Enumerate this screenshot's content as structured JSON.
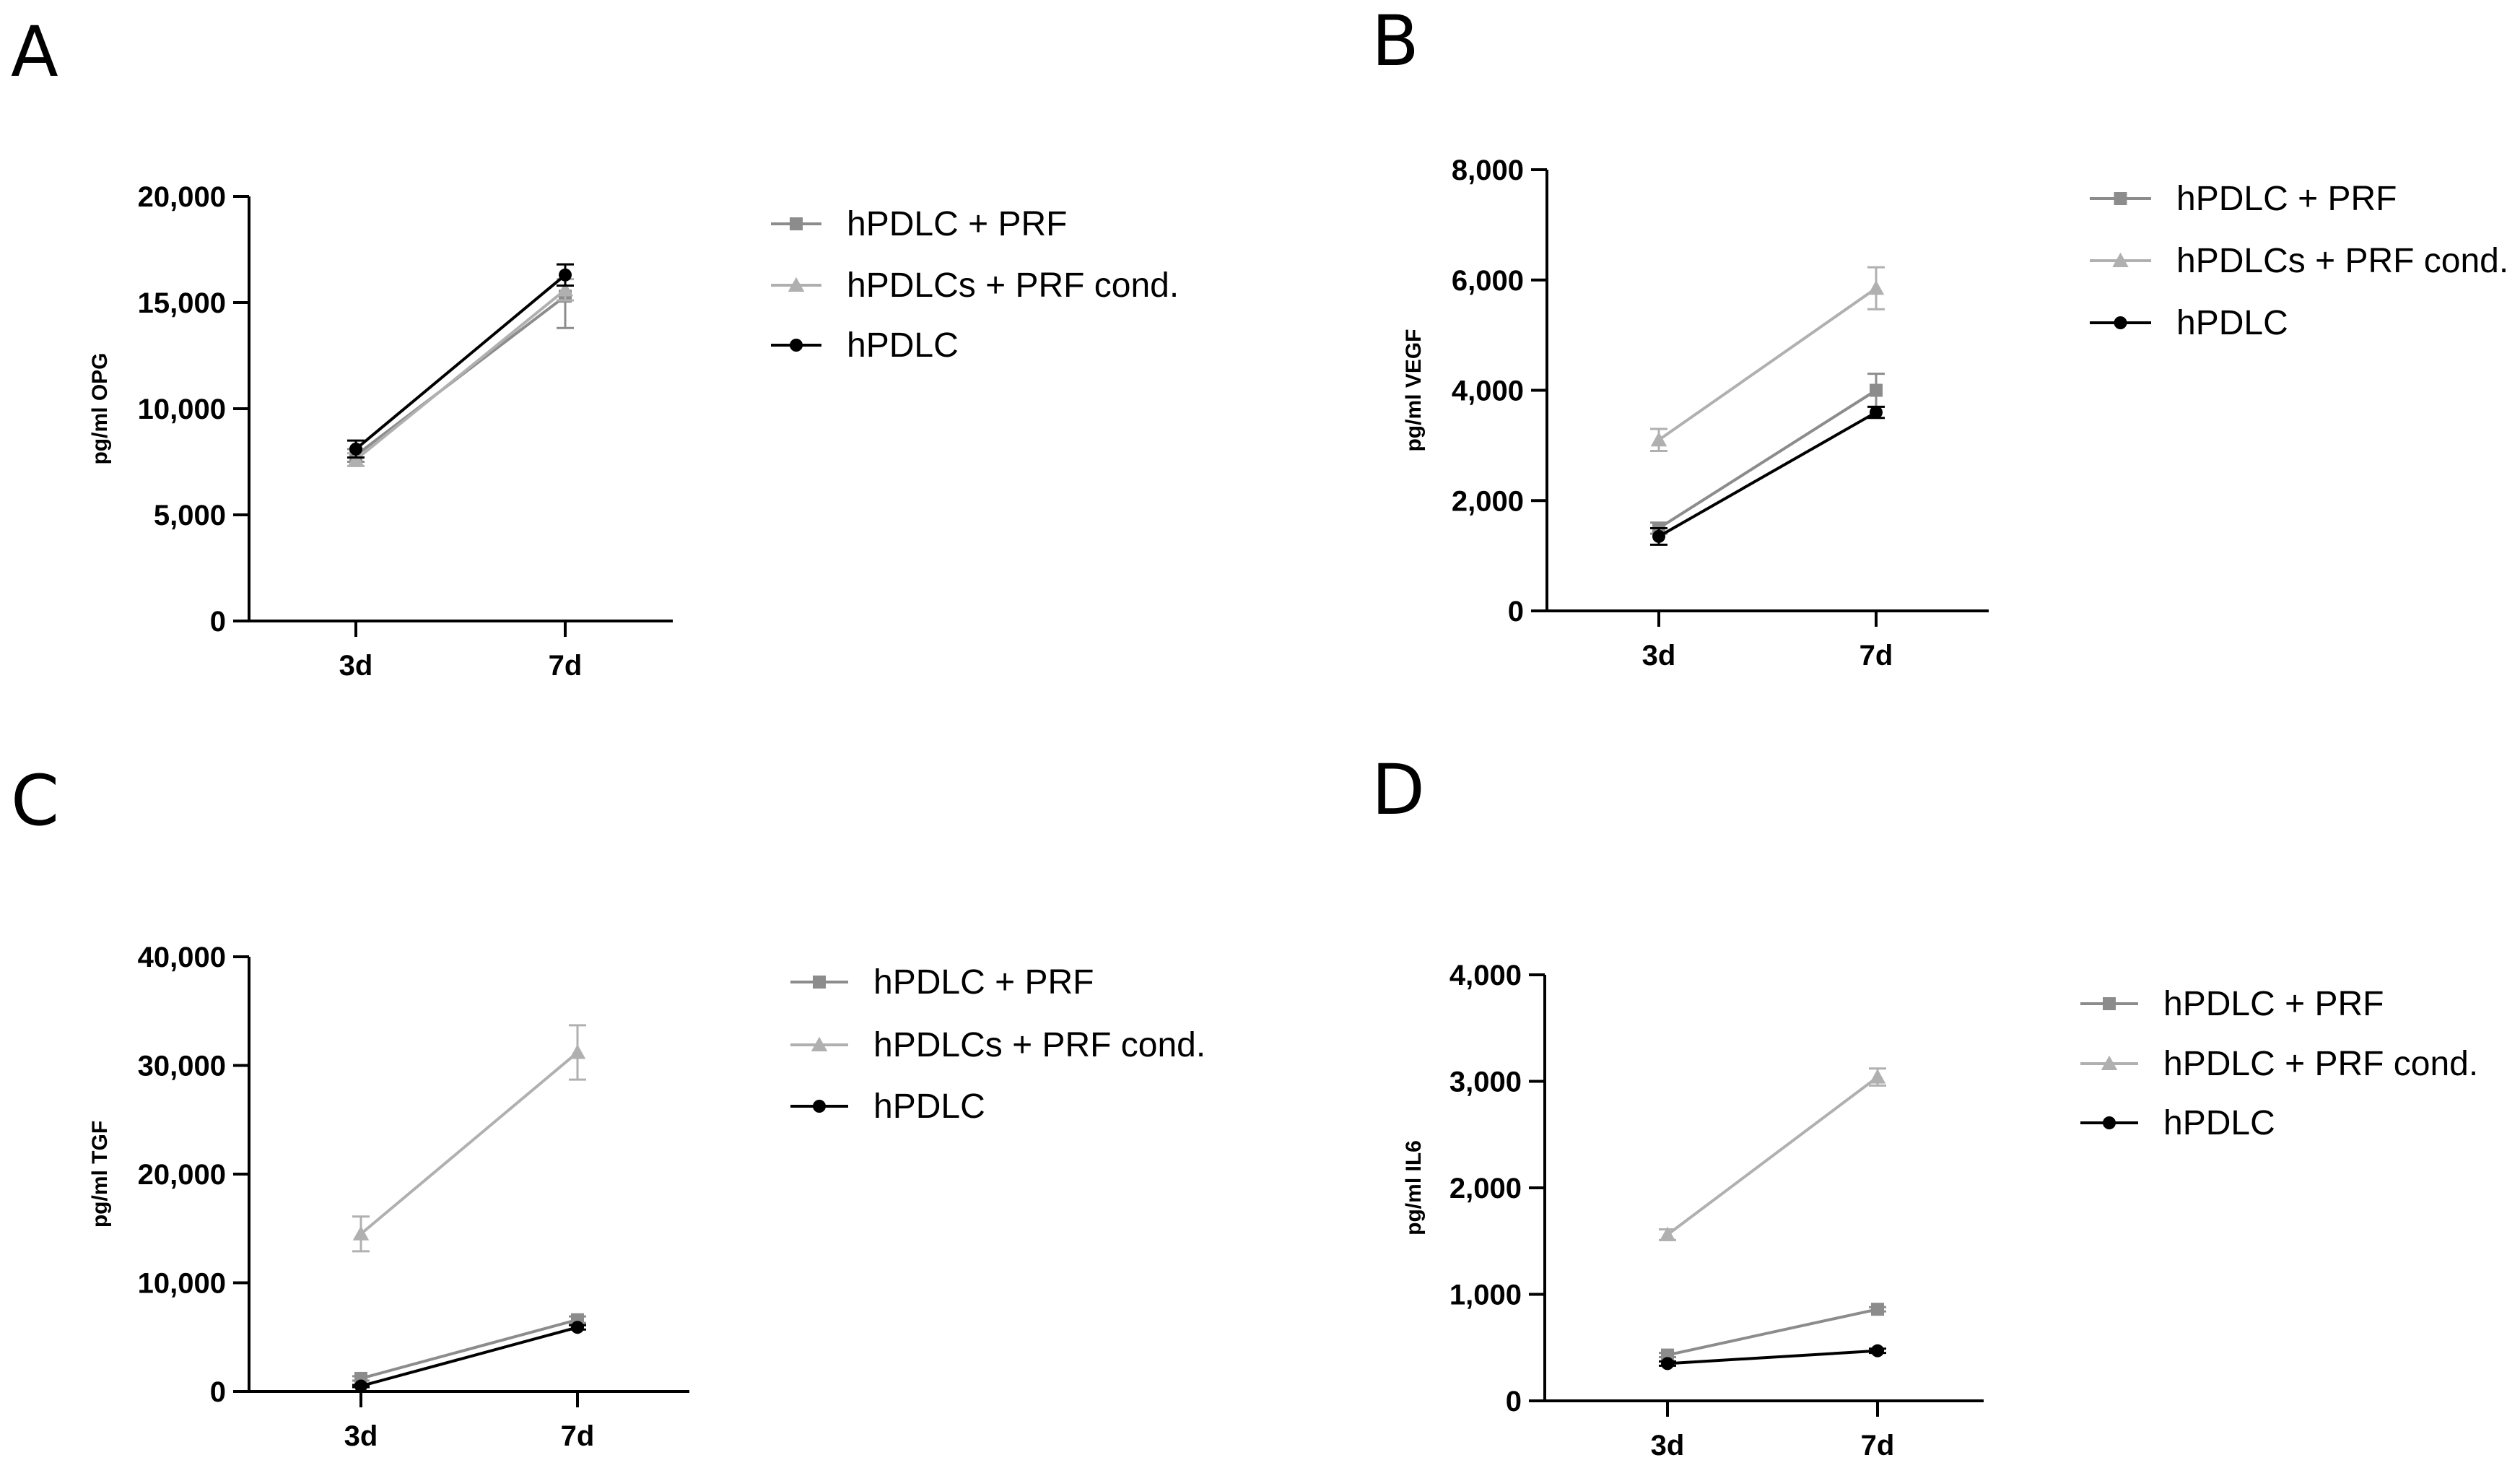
{
  "chart_data": [
    {
      "type": "line",
      "panel_label": "A",
      "categories": [
        "3d",
        "7d"
      ],
      "ylabel": "pg/ml OPG",
      "ylim": [
        0,
        20000
      ],
      "yticks": [
        0,
        5000,
        10000,
        15000,
        20000
      ],
      "ytick_labels": [
        "0",
        "5,000",
        "10,000",
        "15,000",
        "20,000"
      ],
      "series": [
        {
          "name": "hPDLC + PRF",
          "marker": "square",
          "color": "#8c8c8c",
          "values": [
            7800,
            15300
          ],
          "errors": [
            300,
            1500
          ]
        },
        {
          "name": "hPDLCs + PRF cond.",
          "marker": "triangle",
          "color": "#b0b0b0",
          "values": [
            7600,
            15600
          ],
          "errors": [
            300,
            500
          ]
        },
        {
          "name": "hPDLC",
          "marker": "circle",
          "color": "#000000",
          "values": [
            8100,
            16300
          ],
          "errors": [
            400,
            500
          ]
        }
      ]
    },
    {
      "type": "line",
      "panel_label": "B",
      "categories": [
        "3d",
        "7d"
      ],
      "ylabel": "pg/ml VEGF",
      "ylim": [
        0,
        8000
      ],
      "yticks": [
        0,
        2000,
        4000,
        6000,
        8000
      ],
      "ytick_labels": [
        "0",
        "2,000",
        "4,000",
        "6,000",
        "8,000"
      ],
      "series": [
        {
          "name": "hPDLC + PRF",
          "marker": "square",
          "color": "#8c8c8c",
          "values": [
            1500,
            4000
          ],
          "errors": [
            100,
            300
          ]
        },
        {
          "name": "hPDLCs + PRF cond.",
          "marker": "triangle",
          "color": "#b0b0b0",
          "values": [
            3100,
            5850
          ],
          "errors": [
            200,
            380
          ]
        },
        {
          "name": "hPDLC",
          "marker": "circle",
          "color": "#000000",
          "values": [
            1350,
            3600
          ],
          "errors": [
            150,
            100
          ]
        }
      ]
    },
    {
      "type": "line",
      "panel_label": "C",
      "categories": [
        "3d",
        "7d"
      ],
      "ylabel": "pg/ml TGF",
      "ylim": [
        0,
        40000
      ],
      "yticks": [
        0,
        10000,
        20000,
        30000,
        40000
      ],
      "ytick_labels": [
        "0",
        "10,000",
        "20,000",
        "30,000",
        "40,000"
      ],
      "series": [
        {
          "name": "hPDLC + PRF",
          "marker": "square",
          "color": "#8c8c8c",
          "values": [
            1200,
            6600
          ],
          "errors": [
            200,
            300
          ]
        },
        {
          "name": "hPDLCs + PRF cond.",
          "marker": "triangle",
          "color": "#b0b0b0",
          "values": [
            14500,
            31200
          ],
          "errors": [
            1600,
            2500
          ]
        },
        {
          "name": "hPDLC",
          "marker": "circle",
          "color": "#000000",
          "values": [
            500,
            5900
          ],
          "errors": [
            100,
            200
          ]
        }
      ]
    },
    {
      "type": "line",
      "panel_label": "D",
      "categories": [
        "3d",
        "7d"
      ],
      "ylabel": "pg/ml IL6",
      "ylim": [
        0,
        4000
      ],
      "yticks": [
        0,
        1000,
        2000,
        3000,
        4000
      ],
      "ytick_labels": [
        "0",
        "1,000",
        "2,000",
        "3,000",
        "4,000"
      ],
      "series": [
        {
          "name": "hPDLC + PRF",
          "marker": "square",
          "color": "#8c8c8c",
          "values": [
            430,
            860
          ],
          "errors": [
            20,
            20
          ]
        },
        {
          "name": "hPDLC + PRF cond.",
          "marker": "triangle",
          "color": "#b0b0b0",
          "values": [
            1560,
            3040
          ],
          "errors": [
            50,
            80
          ]
        },
        {
          "name": "hPDLC",
          "marker": "circle",
          "color": "#000000",
          "values": [
            350,
            470
          ],
          "errors": [
            20,
            20
          ]
        }
      ]
    }
  ]
}
